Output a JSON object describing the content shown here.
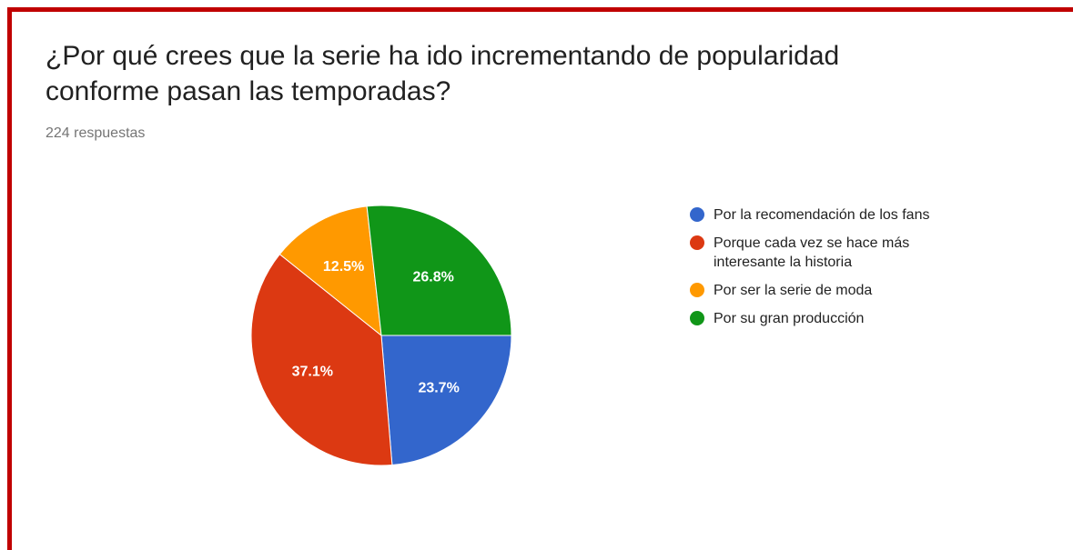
{
  "chart_data": {
    "type": "pie",
    "title": "¿Por qué crees que la serie ha ido incrementando de popularidad conforme pasan las temporadas?",
    "subtitle": "224 respuestas",
    "categories": [
      "Por la recomendación de los fans",
      "Porque cada vez se hace más interesante la historia",
      "Por ser la serie de moda",
      "Por su gran producción"
    ],
    "values": [
      23.7,
      37.1,
      12.5,
      26.8
    ],
    "value_labels": [
      "23.7%",
      "37.1%",
      "12.5%",
      "26.8%"
    ],
    "colors": [
      "#3366cc",
      "#dc3912",
      "#ff9900",
      "#109618"
    ],
    "legend": "right"
  }
}
